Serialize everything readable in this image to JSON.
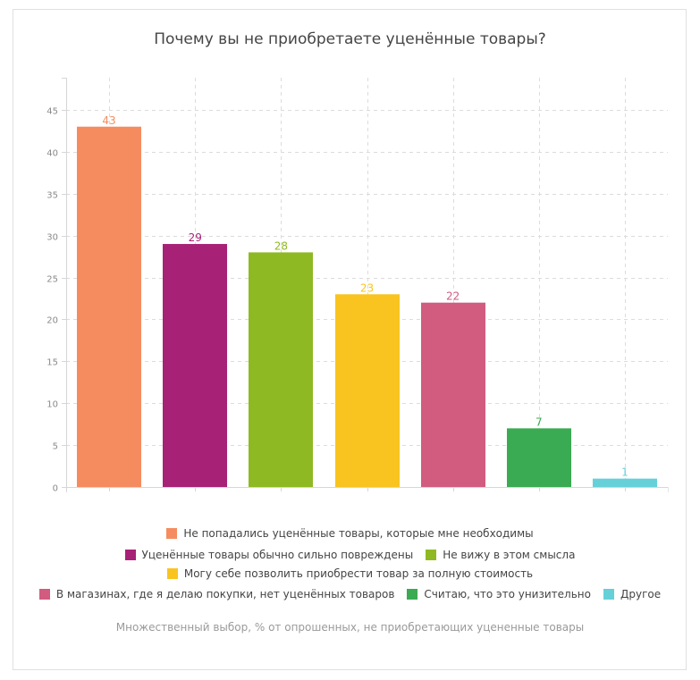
{
  "chart_data": {
    "type": "bar",
    "title": "Почему вы не приобретаете уценённые товары?",
    "categories": [
      "Не попадались уценённые товары, которые мне необходимы",
      "Уценённые товары обычно сильно повреждены",
      "Не вижу в этом смысла",
      "Могу себе позволить приобрести товар за полную стоимость",
      "В магазинах, где я делаю покупки, нет уценённых товаров",
      "Считаю, что это унизительно",
      "Другое"
    ],
    "values": [
      43,
      29,
      28,
      23,
      22,
      7,
      1
    ],
    "colors": [
      "#f58c5f",
      "#a72177",
      "#8fb922",
      "#f9c41f",
      "#d15c80",
      "#3aab52",
      "#66d0d8"
    ],
    "xlabel": "",
    "ylabel": "",
    "ylim": [
      0,
      49
    ],
    "yticks": [
      0,
      5,
      10,
      15,
      20,
      25,
      30,
      35,
      40,
      45
    ],
    "grid": true,
    "data_labels": true,
    "legend_position": "bottom",
    "footnote": "Множественный выбор, % от опрошенных, не приобретающих уцененные товары"
  },
  "legend_rows": [
    [
      0
    ],
    [
      1,
      2
    ],
    [
      3
    ],
    [
      4,
      5,
      6
    ]
  ]
}
